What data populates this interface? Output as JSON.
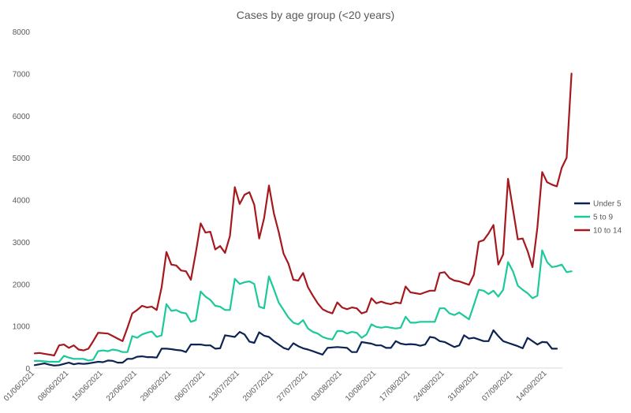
{
  "chart_data": {
    "type": "line",
    "title": "Cases by age group (<20 years)",
    "xlabel": "",
    "ylabel": "",
    "ylim": [
      0,
      8000
    ],
    "yticks": [
      0,
      1000,
      2000,
      3000,
      4000,
      5000,
      6000,
      7000,
      8000
    ],
    "x_start": "01/06/2021",
    "x_end": "19/09/2021",
    "xtick_labels": [
      "01/06/2021",
      "08/06/2021",
      "15/06/2021",
      "22/06/2021",
      "29/06/2021",
      "06/07/2021",
      "13/07/2021",
      "20/07/2021",
      "27/07/2021",
      "03/08/2021",
      "10/08/2021",
      "17/08/2021",
      "24/08/2021",
      "31/08/2021",
      "07/09/2021",
      "14/09/2021"
    ],
    "grid": false,
    "legend_position": "right",
    "series": [
      {
        "name": "Under 5",
        "color": "#0d2452",
        "values": [
          70,
          90,
          110,
          80,
          60,
          70,
          100,
          130,
          90,
          110,
          100,
          110,
          130,
          150,
          140,
          180,
          170,
          130,
          130,
          220,
          220,
          270,
          280,
          260,
          260,
          250,
          460,
          460,
          450,
          430,
          420,
          380,
          560,
          560,
          560,
          540,
          540,
          460,
          470,
          780,
          760,
          740,
          860,
          800,
          630,
          600,
          850,
          770,
          740,
          640,
          560,
          480,
          440,
          590,
          520,
          470,
          440,
          400,
          360,
          320,
          480,
          490,
          500,
          490,
          480,
          380,
          380,
          620,
          600,
          580,
          540,
          540,
          480,
          480,
          640,
          580,
          560,
          570,
          560,
          530,
          560,
          740,
          720,
          640,
          620,
          560,
          500,
          540,
          780,
          700,
          720,
          680,
          640,
          640,
          900,
          760,
          640,
          600,
          560,
          520,
          470,
          720,
          640,
          560,
          620,
          610,
          460,
          460
        ]
      },
      {
        "name": "5 to 9",
        "color": "#1cc99a",
        "values": [
          170,
          170,
          160,
          150,
          150,
          150,
          290,
          250,
          220,
          220,
          220,
          180,
          200,
          400,
          420,
          400,
          440,
          420,
          380,
          380,
          760,
          720,
          800,
          840,
          870,
          740,
          780,
          1520,
          1360,
          1380,
          1320,
          1300,
          1100,
          1140,
          1820,
          1700,
          1620,
          1480,
          1460,
          1380,
          1380,
          2120,
          2000,
          2040,
          2060,
          2000,
          1460,
          1420,
          2180,
          1880,
          1560,
          1380,
          1200,
          1080,
          1040,
          1140,
          940,
          860,
          820,
          740,
          700,
          680,
          880,
          880,
          820,
          860,
          840,
          720,
          800,
          1040,
          980,
          960,
          980,
          960,
          940,
          960,
          1220,
          1080,
          1080,
          1100,
          1100,
          1100,
          1100,
          1420,
          1420,
          1300,
          1260,
          1320,
          1240,
          1160,
          1500,
          1860,
          1840,
          1760,
          1840,
          1700,
          1860,
          2520,
          2300,
          1960,
          1860,
          1780,
          1660,
          1720,
          2800,
          2520,
          2400,
          2420,
          2460,
          2280,
          2300
        ]
      },
      {
        "name": "10 to 14",
        "color": "#a5191e",
        "values": [
          350,
          360,
          340,
          320,
          300,
          540,
          560,
          480,
          540,
          440,
          420,
          460,
          640,
          840,
          830,
          820,
          760,
          700,
          640,
          960,
          1300,
          1380,
          1480,
          1440,
          1460,
          1380,
          1920,
          2760,
          2460,
          2440,
          2320,
          2300,
          2100,
          2740,
          3440,
          3220,
          3240,
          2820,
          2900,
          2740,
          3140,
          4300,
          3900,
          4120,
          4180,
          3880,
          3080,
          3560,
          4340,
          3680,
          3240,
          2720,
          2480,
          2100,
          2080,
          2260,
          1920,
          1720,
          1540,
          1400,
          1340,
          1300,
          1560,
          1440,
          1400,
          1440,
          1420,
          1300,
          1340,
          1660,
          1540,
          1580,
          1540,
          1520,
          1560,
          1540,
          1940,
          1800,
          1780,
          1760,
          1800,
          1840,
          1840,
          2260,
          2280,
          2140,
          2080,
          2060,
          2020,
          1980,
          2220,
          3000,
          3040,
          3200,
          3400,
          2460,
          2700,
          4500,
          3780,
          3060,
          3080,
          2780,
          2400,
          3340,
          4660,
          4420,
          4360,
          4320,
          4760,
          5000,
          7000
        ]
      }
    ]
  }
}
